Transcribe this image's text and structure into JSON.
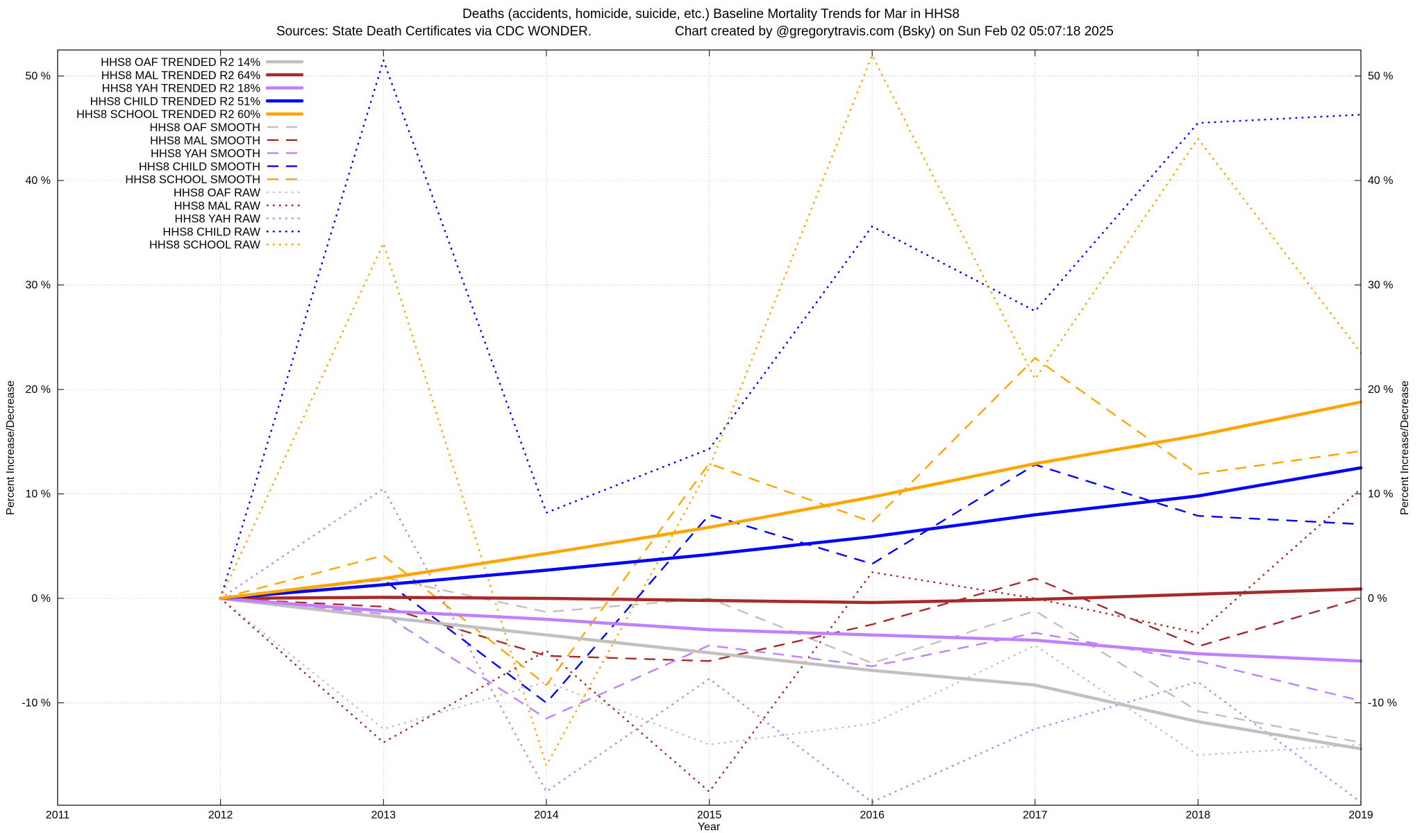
{
  "chart_data": {
    "type": "line",
    "title": "Deaths (accidents, homicide, suicide, etc.)  Baseline Mortality Trends for Mar in HHS8",
    "subtitle_left": "Sources: State Death Certificates via CDC WONDER.",
    "subtitle_right": "Chart created by @gregorytravis.com (Bsky) on Sun Feb 02 05:07:18 2025",
    "xlabel": "Year",
    "ylabel": "Percent Increase/Decrease",
    "xlim": [
      2011,
      2019
    ],
    "ylim": [
      -20,
      52
    ],
    "x_ticks": [
      2011,
      2012,
      2013,
      2014,
      2015,
      2016,
      2017,
      2018,
      2019
    ],
    "y_ticks": [
      -10,
      0,
      10,
      20,
      30,
      40,
      50
    ],
    "y_tick_labels": [
      "-10 %",
      "0 %",
      "10 %",
      "20 %",
      "30 %",
      "40 %",
      "50 %"
    ],
    "grid": true,
    "legend_position": "top-left",
    "x": [
      2012,
      2013,
      2014,
      2015,
      2016,
      2017,
      2018,
      2019
    ],
    "series": [
      {
        "name": "HHS8 OAF TRENDED R2  14%",
        "style": "trend",
        "color": "#c0c0c0",
        "values": [
          0,
          -1.8,
          -3.5,
          -5.2,
          -6.9,
          -8.3,
          -11.8,
          -14.4
        ]
      },
      {
        "name": "HHS8 MAL TRENDED R2  64%",
        "style": "trend",
        "color": "#a52a2a",
        "values": [
          0,
          0.1,
          0.0,
          -0.2,
          -0.4,
          -0.1,
          0.4,
          0.9
        ]
      },
      {
        "name": "HHS8 YAH TRENDED R2  18%",
        "style": "trend",
        "color": "#c080ff",
        "values": [
          0,
          -1.2,
          -2.0,
          -3.0,
          -3.5,
          -4.0,
          -5.3,
          -6.0
        ]
      },
      {
        "name": "HHS8 CHILD TRENDED R2  51%",
        "style": "trend",
        "color": "#0000ff",
        "values": [
          0,
          1.3,
          2.7,
          4.2,
          5.9,
          8.0,
          9.8,
          12.5
        ]
      },
      {
        "name": "HHS8 SCHOOL TRENDED R2  60%",
        "style": "trend",
        "color": "#ffa500",
        "values": [
          0,
          1.9,
          4.3,
          6.8,
          9.7,
          12.9,
          15.6,
          18.8
        ]
      },
      {
        "name": "HHS8 OAF SMOOTH",
        "style": "smooth",
        "color": "#c0c0c0",
        "values": [
          0,
          2.0,
          -1.3,
          0.0,
          -6.2,
          -1.2,
          -10.8,
          -13.8
        ]
      },
      {
        "name": "HHS8 MAL SMOOTH",
        "style": "smooth",
        "color": "#a52a2a",
        "values": [
          0,
          -0.8,
          -5.5,
          -6.0,
          -2.5,
          1.9,
          -4.6,
          0.0
        ]
      },
      {
        "name": "HHS8 YAH SMOOTH",
        "style": "smooth",
        "color": "#c080ff",
        "values": [
          0,
          -1.5,
          -11.5,
          -4.5,
          -6.5,
          -3.3,
          -6.0,
          -9.8
        ]
      },
      {
        "name": "HHS8 CHILD SMOOTH",
        "style": "smooth",
        "color": "#0000ff",
        "values": [
          0,
          1.8,
          -10.0,
          8.0,
          3.3,
          12.8,
          7.9,
          7.1
        ]
      },
      {
        "name": "HHS8 SCHOOL SMOOTH",
        "style": "smooth",
        "color": "#ffa500",
        "values": [
          0,
          4.1,
          -8.3,
          12.9,
          7.3,
          23.0,
          11.9,
          14.1
        ]
      },
      {
        "name": "HHS8 OAF RAW",
        "style": "raw",
        "color": "#c0c0c0",
        "values": [
          0,
          -12.5,
          -8.0,
          -14.0,
          -12.0,
          -4.5,
          -15.0,
          -14.0
        ]
      },
      {
        "name": "HHS8 MAL RAW",
        "style": "raw",
        "color": "#a52a2a",
        "values": [
          0,
          -13.8,
          -5.0,
          -18.5,
          2.5,
          0.0,
          -3.3,
          10.5
        ]
      },
      {
        "name": "HHS8 YAH RAW",
        "style": "raw",
        "color": "#c080ff",
        "values": [
          0,
          10.5,
          -18.5,
          -7.7,
          -19.5,
          -12.5,
          -8.0,
          -19.5
        ]
      },
      {
        "name": "HHS8 CHILD RAW",
        "style": "raw",
        "color": "#0000ff",
        "values": [
          0,
          51.5,
          8.2,
          14.3,
          35.6,
          27.5,
          45.5,
          46.3
        ]
      },
      {
        "name": "HHS8 SCHOOL RAW",
        "style": "raw",
        "color": "#ffa500",
        "values": [
          0,
          34.0,
          -16.0,
          12.5,
          52.0,
          21.0,
          44.0,
          23.5
        ]
      }
    ]
  }
}
